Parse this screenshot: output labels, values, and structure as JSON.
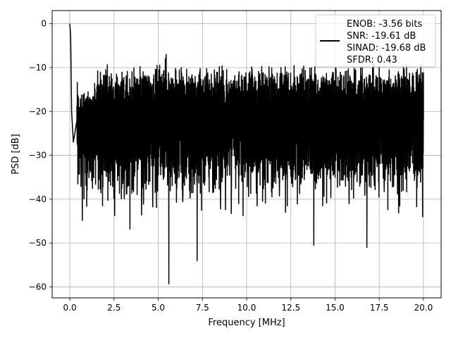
{
  "chart_data": {
    "type": "line",
    "title": "",
    "xlabel": "Frequency [MHz]",
    "ylabel": "PSD [dB]",
    "xlim": [
      -1.0,
      21.0
    ],
    "ylim": [
      -62.5,
      3.0
    ],
    "xticks": [
      0.0,
      2.5,
      5.0,
      7.5,
      10.0,
      12.5,
      15.0,
      17.5,
      20.0
    ],
    "xtick_labels": [
      "0.0",
      "2.5",
      "5.0",
      "7.5",
      "10.0",
      "12.5",
      "15.0",
      "17.5",
      "20.0"
    ],
    "yticks": [
      0,
      -10,
      -20,
      -30,
      -40,
      -50,
      -60
    ],
    "ytick_labels": [
      "0",
      "−10",
      "−20",
      "−30",
      "−40",
      "−50",
      "−60"
    ],
    "grid": true,
    "legend_position": "top-right",
    "legend_lines": [
      "ENOB: -3.56 bits",
      "SNR: -19.61 dB",
      "SINAD: -19.68 dB",
      "SFDR: 0.43"
    ],
    "series": [
      {
        "color": "#000000",
        "x": [
          0.0,
          0.05,
          0.1,
          0.2,
          0.4,
          5.4,
          5.6,
          5.65,
          5.7,
          7.2,
          12.2,
          12.3,
          13.8,
          16.8,
          16.85,
          20.0
        ],
        "y": [
          0.0,
          -3.0,
          -20.0,
          -27.0,
          -22.0,
          -8.0,
          -59.3,
          -20.0,
          -35.0,
          -54.0,
          -43.0,
          -41.5,
          -50.5,
          -51.0,
          -22.0,
          -22.0
        ]
      }
    ],
    "noise_floor": {
      "mean_db": -22.0,
      "upper_envelope_db": -12.0,
      "lower_envelope_db": -35.0
    }
  }
}
